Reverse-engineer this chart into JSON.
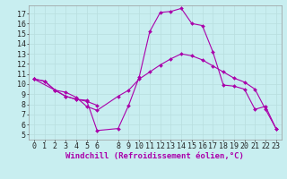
{
  "bg_color": "#c8eef0",
  "line_color": "#aa00aa",
  "grid_color": "#aadddd",
  "xlabel": "Windchill (Refroidissement éolien,°C)",
  "xlim": [
    -0.5,
    23.5
  ],
  "ylim": [
    4.5,
    17.8
  ],
  "xticks": [
    0,
    1,
    2,
    3,
    4,
    5,
    6,
    8,
    9,
    10,
    11,
    12,
    13,
    14,
    15,
    16,
    17,
    18,
    19,
    20,
    21,
    22,
    23
  ],
  "yticks": [
    5,
    6,
    7,
    8,
    9,
    10,
    11,
    12,
    13,
    14,
    15,
    16,
    17
  ],
  "xlabel_fontsize": 6.5,
  "tick_fontsize": 6,
  "line1_x": [
    0,
    1,
    2,
    3,
    4,
    5,
    6,
    8,
    9,
    10,
    11,
    12,
    13,
    14,
    15,
    16,
    17,
    18,
    19,
    20,
    21,
    22,
    23
  ],
  "line1_y": [
    10.5,
    10.3,
    9.4,
    8.8,
    8.5,
    8.4,
    5.4,
    5.6,
    7.9,
    10.7,
    15.2,
    17.1,
    17.2,
    17.5,
    16.0,
    15.8,
    13.2,
    9.9,
    9.8,
    9.5,
    7.5,
    7.8,
    5.6
  ],
  "line2_x": [
    0,
    2,
    3,
    4,
    5,
    6,
    8,
    9,
    10,
    11,
    12,
    13,
    14,
    15,
    16,
    17,
    18,
    19,
    20,
    21,
    22,
    23
  ],
  "line2_y": [
    10.5,
    9.4,
    9.2,
    8.7,
    7.8,
    7.4,
    8.8,
    9.4,
    10.5,
    11.2,
    11.9,
    12.5,
    13.0,
    12.8,
    12.4,
    11.8,
    11.2,
    10.6,
    10.2,
    9.5,
    7.5,
    5.6
  ],
  "line3_x": [
    0,
    1,
    2,
    3,
    4,
    5,
    6
  ],
  "line3_y": [
    10.5,
    10.3,
    9.4,
    8.8,
    8.5,
    8.3,
    7.9
  ]
}
